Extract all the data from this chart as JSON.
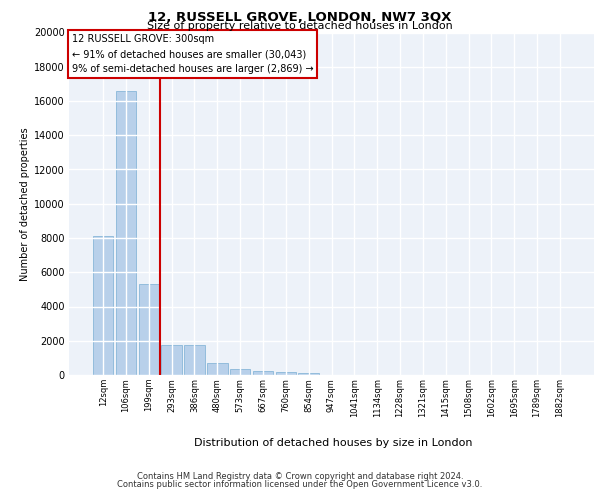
{
  "title": "12, RUSSELL GROVE, LONDON, NW7 3QX",
  "subtitle": "Size of property relative to detached houses in London",
  "xlabel": "Distribution of detached houses by size in London",
  "ylabel": "Number of detached properties",
  "categories": [
    "12sqm",
    "106sqm",
    "199sqm",
    "293sqm",
    "386sqm",
    "480sqm",
    "573sqm",
    "667sqm",
    "760sqm",
    "854sqm",
    "947sqm",
    "1041sqm",
    "1134sqm",
    "1228sqm",
    "1321sqm",
    "1415sqm",
    "1508sqm",
    "1602sqm",
    "1695sqm",
    "1789sqm",
    "1882sqm"
  ],
  "values": [
    8100,
    16600,
    5300,
    1750,
    1750,
    700,
    350,
    220,
    170,
    130,
    0,
    0,
    0,
    0,
    0,
    0,
    0,
    0,
    0,
    0,
    0
  ],
  "bar_color": "#b8d0ea",
  "bar_edge_color": "#7aafd4",
  "property_line_color": "#cc0000",
  "property_line_x": 2.5,
  "annotation_line1": "12 RUSSELL GROVE: 300sqm",
  "annotation_line2": "← 91% of detached houses are smaller (30,043)",
  "annotation_line3": "9% of semi-detached houses are larger (2,869) →",
  "ylim": [
    0,
    20000
  ],
  "yticks": [
    0,
    2000,
    4000,
    6000,
    8000,
    10000,
    12000,
    14000,
    16000,
    18000,
    20000
  ],
  "footer_line1": "Contains HM Land Registry data © Crown copyright and database right 2024.",
  "footer_line2": "Contains public sector information licensed under the Open Government Licence v3.0.",
  "bg_color": "#edf2f9",
  "grid_color": "#ffffff"
}
